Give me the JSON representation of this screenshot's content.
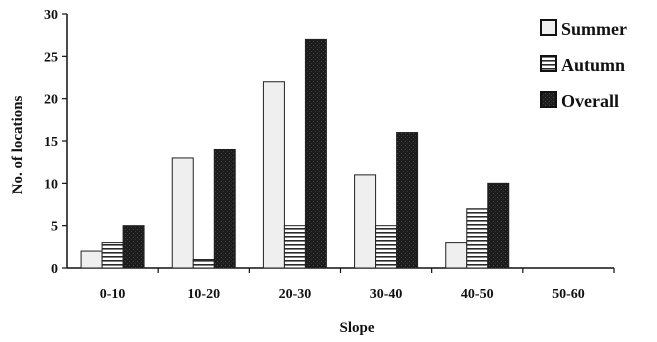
{
  "chart_data": {
    "type": "bar",
    "xlabel": "Slope",
    "ylabel": "No. of locations",
    "categories": [
      "0-10",
      "10-20",
      "20-30",
      "30-40",
      "40-50",
      "50-60"
    ],
    "ylim": [
      0,
      30
    ],
    "yticks": [
      0,
      5,
      10,
      15,
      20,
      25,
      30
    ],
    "grid": false,
    "legend_position": "top-right",
    "series": [
      {
        "name": "Summer",
        "values": [
          2,
          13,
          22,
          11,
          3,
          0
        ],
        "fill": "#efefef",
        "pattern": "none"
      },
      {
        "name": "Autumn",
        "values": [
          3,
          1,
          5,
          5,
          7,
          0
        ],
        "fill": "#ffffff",
        "pattern": "horizontal-stripes"
      },
      {
        "name": "Overall",
        "values": [
          5,
          14,
          27,
          16,
          10,
          0
        ],
        "fill": "#1c1c1c",
        "pattern": "dark-speckle"
      }
    ]
  }
}
